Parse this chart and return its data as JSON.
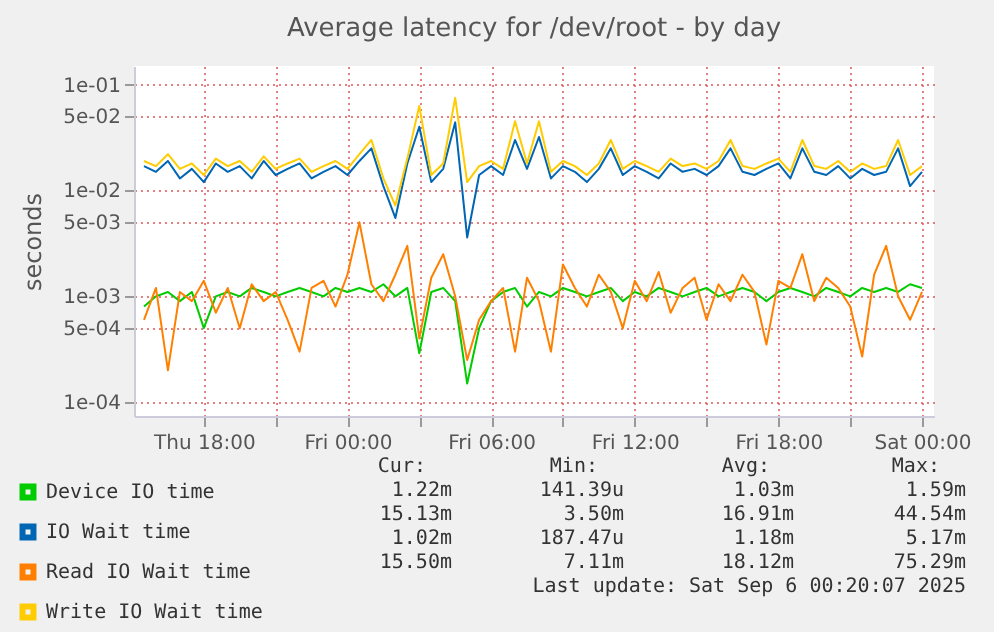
{
  "chart_data": {
    "type": "line",
    "title": "Average latency for /dev/root - by day",
    "ylabel": "seconds",
    "x": [
      "2025-09-04T15:30",
      "2025-09-04T16:00",
      "2025-09-04T16:30",
      "2025-09-04T17:00",
      "2025-09-04T17:30",
      "2025-09-04T18:00",
      "2025-09-04T18:30",
      "2025-09-04T19:00",
      "2025-09-04T19:30",
      "2025-09-04T20:00",
      "2025-09-04T20:30",
      "2025-09-04T21:00",
      "2025-09-04T21:30",
      "2025-09-04T22:00",
      "2025-09-04T22:30",
      "2025-09-04T23:00",
      "2025-09-04T23:30",
      "2025-09-05T00:00",
      "2025-09-05T00:30",
      "2025-09-05T01:00",
      "2025-09-05T01:30",
      "2025-09-05T02:00",
      "2025-09-05T02:30",
      "2025-09-05T03:00",
      "2025-09-05T03:30",
      "2025-09-05T04:00",
      "2025-09-05T04:30",
      "2025-09-05T05:00",
      "2025-09-05T05:30",
      "2025-09-05T06:00",
      "2025-09-05T06:30",
      "2025-09-05T07:00",
      "2025-09-05T07:30",
      "2025-09-05T08:00",
      "2025-09-05T08:30",
      "2025-09-05T09:00",
      "2025-09-05T09:30",
      "2025-09-05T10:00",
      "2025-09-05T10:30",
      "2025-09-05T11:00",
      "2025-09-05T11:30",
      "2025-09-05T12:00",
      "2025-09-05T12:30",
      "2025-09-05T13:00",
      "2025-09-05T13:30",
      "2025-09-05T14:00",
      "2025-09-05T14:30",
      "2025-09-05T15:00",
      "2025-09-05T15:30",
      "2025-09-05T16:00",
      "2025-09-05T16:30",
      "2025-09-05T17:00",
      "2025-09-05T17:30",
      "2025-09-05T18:00",
      "2025-09-05T18:30",
      "2025-09-05T19:00",
      "2025-09-05T19:30",
      "2025-09-05T20:00",
      "2025-09-05T20:30",
      "2025-09-05T21:00",
      "2025-09-05T21:30",
      "2025-09-05T22:00",
      "2025-09-05T22:30",
      "2025-09-05T23:00",
      "2025-09-05T23:30",
      "2025-09-06T00:00"
    ],
    "series": [
      {
        "name": "Device IO time",
        "color": "#00cc00",
        "values": [
          0.0008,
          0.001,
          0.0011,
          0.0009,
          0.0011,
          0.0005,
          0.001,
          0.0011,
          0.001,
          0.0012,
          0.0011,
          0.001,
          0.0011,
          0.0012,
          0.0011,
          0.001,
          0.0012,
          0.0011,
          0.0012,
          0.0011,
          0.0013,
          0.001,
          0.0012,
          0.00029,
          0.0011,
          0.0012,
          0.0009,
          0.00015,
          0.0005,
          0.0009,
          0.0011,
          0.0012,
          0.0008,
          0.0011,
          0.001,
          0.0012,
          0.0011,
          0.001,
          0.0011,
          0.0012,
          0.0009,
          0.0011,
          0.001,
          0.0012,
          0.0011,
          0.001,
          0.0011,
          0.0012,
          0.001,
          0.0011,
          0.0012,
          0.0011,
          0.0009,
          0.0011,
          0.0012,
          0.0011,
          0.001,
          0.0012,
          0.0011,
          0.001,
          0.0012,
          0.0011,
          0.0012,
          0.0011,
          0.0013,
          0.0012
        ]
      },
      {
        "name": "IO Wait time",
        "color": "#0066b3",
        "values": [
          0.017,
          0.015,
          0.019,
          0.013,
          0.016,
          0.012,
          0.018,
          0.015,
          0.017,
          0.013,
          0.019,
          0.014,
          0.016,
          0.018,
          0.013,
          0.015,
          0.017,
          0.014,
          0.019,
          0.025,
          0.011,
          0.0055,
          0.018,
          0.04,
          0.012,
          0.016,
          0.044,
          0.0036,
          0.014,
          0.017,
          0.014,
          0.03,
          0.016,
          0.032,
          0.013,
          0.017,
          0.015,
          0.012,
          0.016,
          0.025,
          0.014,
          0.017,
          0.015,
          0.013,
          0.018,
          0.015,
          0.016,
          0.014,
          0.017,
          0.025,
          0.015,
          0.014,
          0.016,
          0.018,
          0.013,
          0.025,
          0.015,
          0.014,
          0.017,
          0.013,
          0.016,
          0.014,
          0.015,
          0.025,
          0.011,
          0.015
        ]
      },
      {
        "name": "Read IO Wait time",
        "color": "#ff8000",
        "values": [
          0.0006,
          0.0012,
          0.0002,
          0.0011,
          0.0009,
          0.0014,
          0.0007,
          0.0012,
          0.0005,
          0.0013,
          0.0009,
          0.0011,
          0.0006,
          0.0003,
          0.0012,
          0.0014,
          0.0008,
          0.0016,
          0.005,
          0.0013,
          0.0009,
          0.0016,
          0.003,
          0.0004,
          0.0015,
          0.0025,
          0.001,
          0.00025,
          0.0006,
          0.0009,
          0.0012,
          0.0003,
          0.0015,
          0.0009,
          0.0003,
          0.002,
          0.0012,
          0.0008,
          0.0016,
          0.0011,
          0.0005,
          0.0014,
          0.0009,
          0.0017,
          0.0007,
          0.0012,
          0.0015,
          0.0006,
          0.0013,
          0.0009,
          0.0016,
          0.0011,
          0.00035,
          0.0014,
          0.0012,
          0.0025,
          0.0009,
          0.0015,
          0.0012,
          0.0008,
          0.00027,
          0.0016,
          0.003,
          0.001,
          0.0006,
          0.0011
        ]
      },
      {
        "name": "Write IO Wait time",
        "color": "#ffcc00",
        "values": [
          0.019,
          0.017,
          0.022,
          0.016,
          0.018,
          0.014,
          0.02,
          0.017,
          0.019,
          0.015,
          0.021,
          0.016,
          0.018,
          0.02,
          0.015,
          0.017,
          0.019,
          0.016,
          0.022,
          0.03,
          0.013,
          0.0072,
          0.02,
          0.063,
          0.014,
          0.018,
          0.075,
          0.012,
          0.017,
          0.019,
          0.016,
          0.045,
          0.018,
          0.045,
          0.015,
          0.019,
          0.017,
          0.014,
          0.018,
          0.03,
          0.016,
          0.019,
          0.017,
          0.015,
          0.02,
          0.017,
          0.018,
          0.016,
          0.019,
          0.03,
          0.017,
          0.016,
          0.018,
          0.02,
          0.015,
          0.03,
          0.017,
          0.016,
          0.019,
          0.015,
          0.018,
          0.016,
          0.017,
          0.03,
          0.014,
          0.017
        ]
      }
    ],
    "xlim": [
      "2025-09-04T15:05",
      "2025-09-06T00:30"
    ],
    "xticks": [
      {
        "value": "2025-09-04T18:00",
        "label": "Thu 18:00"
      },
      {
        "value": "2025-09-04T21:00",
        "label": null
      },
      {
        "value": "2025-09-05T00:00",
        "label": "Fri 00:00"
      },
      {
        "value": "2025-09-05T03:00",
        "label": null
      },
      {
        "value": "2025-09-05T06:00",
        "label": "Fri 06:00"
      },
      {
        "value": "2025-09-05T09:00",
        "label": null
      },
      {
        "value": "2025-09-05T12:00",
        "label": "Fri 12:00"
      },
      {
        "value": "2025-09-05T15:00",
        "label": null
      },
      {
        "value": "2025-09-05T18:00",
        "label": "Fri 18:00"
      },
      {
        "value": "2025-09-05T21:00",
        "label": null
      },
      {
        "value": "2025-09-06T00:00",
        "label": "Sat 00:00"
      }
    ],
    "ylim": [
      7.4e-05,
      0.15
    ],
    "yticks": [
      {
        "value": 0.0001,
        "label": "1e-04"
      },
      {
        "value": 0.0005,
        "label": "5e-04"
      },
      {
        "value": 0.001,
        "label": "1e-03"
      },
      {
        "value": 0.005,
        "label": "5e-03"
      },
      {
        "value": 0.01,
        "label": "1e-02"
      },
      {
        "value": 0.05,
        "label": "5e-02"
      },
      {
        "value": 0.1,
        "label": "1e-01"
      }
    ],
    "log": "y",
    "grid": true,
    "legend": "bottom",
    "line_style": "solid",
    "marker": "none",
    "annotations": [
      "Cur:",
      "Min:",
      "Avg:",
      "Max:",
      "1.22m",
      "141.39u",
      "1.03m",
      "1.59m",
      "15.13m",
      "3.50m",
      "16.91m",
      "44.54m",
      "1.02m",
      "187.47u",
      "1.18m",
      "5.17m",
      "15.50m",
      "7.11m",
      "18.12m",
      "75.29m",
      "Last update: Sat Sep  6 00:20:07 2025"
    ]
  }
}
